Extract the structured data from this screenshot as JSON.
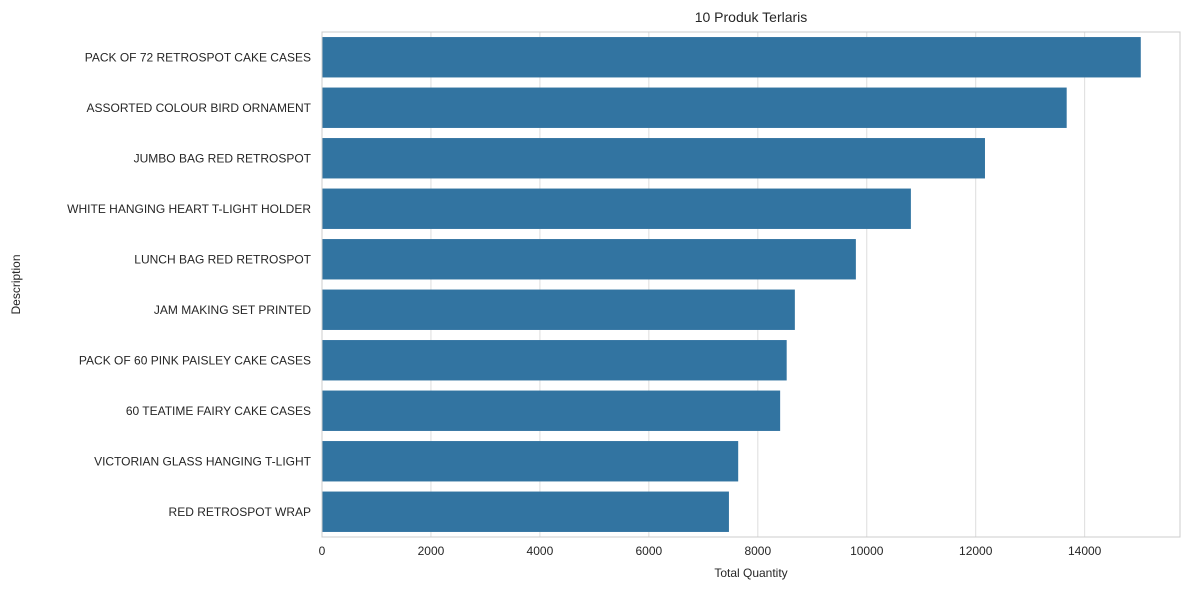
{
  "chart_data": {
    "type": "bar",
    "orientation": "horizontal",
    "title": "10 Produk Terlaris",
    "xlabel": "Total Quantity",
    "ylabel": "Description",
    "xlim": [
      0,
      15750
    ],
    "xticks": [
      0,
      2000,
      4000,
      6000,
      8000,
      10000,
      12000,
      14000
    ],
    "xtick_labels": [
      "0",
      "2000",
      "4000",
      "6000",
      "8000",
      "10000",
      "12000",
      "14000"
    ],
    "grid": true,
    "bar_color": "#3274a1",
    "categories": [
      "PACK OF 72 RETROSPOT CAKE CASES",
      "ASSORTED COLOUR BIRD ORNAMENT",
      "JUMBO BAG RED RETROSPOT",
      "WHITE HANGING HEART T-LIGHT HOLDER",
      "LUNCH BAG RED RETROSPOT",
      "JAM MAKING SET PRINTED",
      "PACK OF 60 PINK PAISLEY CAKE CASES",
      "60 TEATIME FAIRY CAKE CASES",
      "VICTORIAN GLASS HANGING T-LIGHT",
      "RED RETROSPOT WRAP"
    ],
    "values": [
      15030,
      13670,
      12170,
      10810,
      9800,
      8680,
      8530,
      8410,
      7640,
      7470
    ]
  }
}
